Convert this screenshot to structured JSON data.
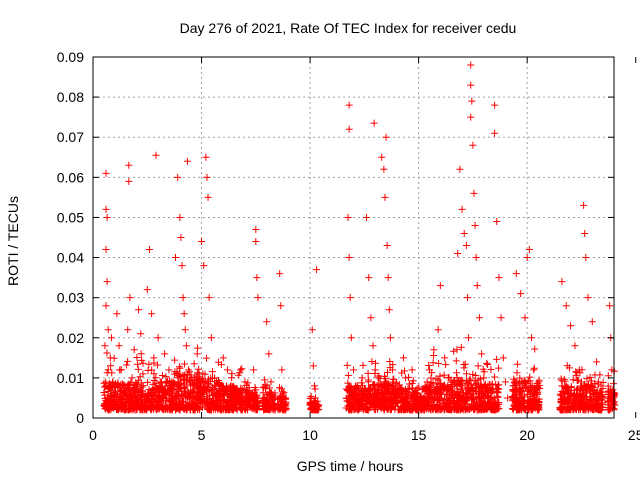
{
  "chart_data": {
    "type": "scatter",
    "title": "Day 276 of 2021, Rate Of TEC Index for receiver cedu",
    "xlabel": "GPS time / hours",
    "ylabel": "ROTI / TECUs",
    "xlim": [
      0,
      24
    ],
    "ylim": [
      0,
      0.09
    ],
    "x_ticks": [
      "0",
      "5",
      "10",
      "15",
      "20",
      "25"
    ],
    "y_ticks": [
      "0",
      "0.01",
      "0.02",
      "0.03",
      "0.04",
      "0.05",
      "0.06",
      "0.07",
      "0.08",
      "0.09"
    ],
    "grid": true,
    "marker": "+",
    "color": "#ff0000",
    "points": [
      [
        0.6,
        0.061
      ],
      [
        0.6,
        0.052
      ],
      [
        0.65,
        0.05
      ],
      [
        0.6,
        0.042
      ],
      [
        0.65,
        0.034
      ],
      [
        0.6,
        0.028
      ],
      [
        0.7,
        0.022
      ],
      [
        0.55,
        0.018
      ],
      [
        0.7,
        0.012
      ],
      [
        0.6,
        0.008
      ],
      [
        0.65,
        0.005
      ],
      [
        0.75,
        0.003
      ],
      [
        0.8,
        0.015
      ],
      [
        0.85,
        0.02
      ],
      [
        0.9,
        0.009
      ],
      [
        1.1,
        0.026
      ],
      [
        1.2,
        0.018
      ],
      [
        1.3,
        0.012
      ],
      [
        1.4,
        0.007
      ],
      [
        1.5,
        0.004
      ],
      [
        1.6,
        0.022
      ],
      [
        1.65,
        0.063
      ],
      [
        1.65,
        0.059
      ],
      [
        1.7,
        0.03
      ],
      [
        1.8,
        0.01
      ],
      [
        1.9,
        0.017
      ],
      [
        2.1,
        0.027
      ],
      [
        2.2,
        0.021
      ],
      [
        2.3,
        0.011
      ],
      [
        2.4,
        0.006
      ],
      [
        2.5,
        0.032
      ],
      [
        2.6,
        0.042
      ],
      [
        2.7,
        0.026
      ],
      [
        2.8,
        0.015
      ],
      [
        2.9,
        0.0655
      ],
      [
        3.0,
        0.02
      ],
      [
        3.1,
        0.009
      ],
      [
        3.2,
        0.005
      ],
      [
        3.3,
        0.016
      ],
      [
        3.5,
        0.012
      ],
      [
        3.6,
        0.008
      ],
      [
        3.8,
        0.04
      ],
      [
        3.9,
        0.06
      ],
      [
        4.0,
        0.05
      ],
      [
        4.05,
        0.045
      ],
      [
        4.1,
        0.038
      ],
      [
        4.15,
        0.03
      ],
      [
        4.2,
        0.026
      ],
      [
        4.25,
        0.022
      ],
      [
        4.3,
        0.018
      ],
      [
        4.35,
        0.064
      ],
      [
        4.4,
        0.012
      ],
      [
        4.5,
        0.008
      ],
      [
        4.6,
        0.005
      ],
      [
        4.7,
        0.003
      ],
      [
        4.8,
        0.016
      ],
      [
        5.0,
        0.044
      ],
      [
        5.1,
        0.038
      ],
      [
        5.2,
        0.065
      ],
      [
        5.25,
        0.06
      ],
      [
        5.3,
        0.055
      ],
      [
        5.35,
        0.03
      ],
      [
        5.45,
        0.02
      ],
      [
        5.6,
        0.01
      ],
      [
        5.8,
        0.006
      ],
      [
        6.0,
        0.015
      ],
      [
        6.2,
        0.012
      ],
      [
        6.4,
        0.008
      ],
      [
        6.6,
        0.005
      ],
      [
        6.8,
        0.012
      ],
      [
        7.0,
        0.009
      ],
      [
        7.2,
        0.004
      ],
      [
        7.5,
        0.047
      ],
      [
        7.5,
        0.044
      ],
      [
        7.55,
        0.035
      ],
      [
        7.6,
        0.03
      ],
      [
        7.4,
        0.012
      ],
      [
        7.5,
        0.007
      ],
      [
        7.6,
        0.004
      ],
      [
        8.0,
        0.024
      ],
      [
        8.1,
        0.016
      ],
      [
        8.2,
        0.009
      ],
      [
        8.3,
        0.005
      ],
      [
        8.6,
        0.036
      ],
      [
        8.65,
        0.028
      ],
      [
        8.7,
        0.012
      ],
      [
        8.75,
        0.006
      ],
      [
        8.8,
        0.003
      ],
      [
        10.1,
        0.022
      ],
      [
        10.15,
        0.013
      ],
      [
        10.2,
        0.008
      ],
      [
        10.25,
        0.005
      ],
      [
        10.3,
        0.037
      ],
      [
        11.8,
        0.078
      ],
      [
        11.8,
        0.072
      ],
      [
        11.75,
        0.05
      ],
      [
        11.8,
        0.04
      ],
      [
        11.85,
        0.03
      ],
      [
        11.9,
        0.02
      ],
      [
        12.0,
        0.012
      ],
      [
        12.1,
        0.007
      ],
      [
        12.2,
        0.004
      ],
      [
        12.4,
        0.01
      ],
      [
        12.6,
        0.05
      ],
      [
        12.7,
        0.035
      ],
      [
        12.8,
        0.025
      ],
      [
        12.9,
        0.018
      ],
      [
        12.95,
        0.0735
      ],
      [
        13.0,
        0.012
      ],
      [
        13.1,
        0.008
      ],
      [
        13.2,
        0.005
      ],
      [
        13.3,
        0.065
      ],
      [
        13.4,
        0.062
      ],
      [
        13.45,
        0.055
      ],
      [
        13.5,
        0.07
      ],
      [
        13.55,
        0.043
      ],
      [
        13.6,
        0.035
      ],
      [
        13.65,
        0.027
      ],
      [
        13.7,
        0.02
      ],
      [
        13.8,
        0.012
      ],
      [
        13.9,
        0.007
      ],
      [
        14.0,
        0.004
      ],
      [
        14.3,
        0.015
      ],
      [
        14.4,
        0.01
      ],
      [
        14.5,
        0.005
      ],
      [
        14.7,
        0.012
      ],
      [
        14.9,
        0.006
      ],
      [
        15.0,
        0.003
      ],
      [
        15.3,
        0.008
      ],
      [
        15.5,
        0.012
      ],
      [
        15.7,
        0.017
      ],
      [
        15.9,
        0.022
      ],
      [
        16.0,
        0.033
      ],
      [
        16.2,
        0.015
      ],
      [
        16.4,
        0.01
      ],
      [
        16.6,
        0.006
      ],
      [
        16.8,
        0.041
      ],
      [
        16.9,
        0.062
      ],
      [
        17.0,
        0.052
      ],
      [
        17.1,
        0.046
      ],
      [
        17.2,
        0.043
      ],
      [
        17.25,
        0.03
      ],
      [
        17.3,
        0.02
      ],
      [
        17.4,
        0.088
      ],
      [
        17.4,
        0.083
      ],
      [
        17.45,
        0.079
      ],
      [
        17.4,
        0.075
      ],
      [
        17.5,
        0.068
      ],
      [
        17.55,
        0.056
      ],
      [
        17.6,
        0.048
      ],
      [
        17.65,
        0.04
      ],
      [
        17.7,
        0.033
      ],
      [
        17.8,
        0.025
      ],
      [
        17.9,
        0.016
      ],
      [
        18.0,
        0.01
      ],
      [
        18.1,
        0.006
      ],
      [
        18.5,
        0.078
      ],
      [
        18.5,
        0.071
      ],
      [
        18.6,
        0.049
      ],
      [
        18.7,
        0.035
      ],
      [
        18.8,
        0.025
      ],
      [
        18.9,
        0.015
      ],
      [
        19.0,
        0.009
      ],
      [
        19.1,
        0.005
      ],
      [
        19.5,
        0.036
      ],
      [
        19.7,
        0.031
      ],
      [
        19.9,
        0.025
      ],
      [
        20.0,
        0.04
      ],
      [
        20.1,
        0.042
      ],
      [
        20.2,
        0.02
      ],
      [
        20.3,
        0.012
      ],
      [
        20.4,
        0.007
      ],
      [
        20.5,
        0.004
      ],
      [
        21.6,
        0.034
      ],
      [
        21.8,
        0.028
      ],
      [
        22.0,
        0.023
      ],
      [
        22.2,
        0.018
      ],
      [
        22.4,
        0.012
      ],
      [
        22.5,
        0.009
      ],
      [
        22.6,
        0.053
      ],
      [
        22.65,
        0.046
      ],
      [
        22.7,
        0.04
      ],
      [
        22.8,
        0.03
      ],
      [
        23.0,
        0.024
      ],
      [
        23.2,
        0.014
      ],
      [
        23.4,
        0.008
      ],
      [
        23.8,
        0.028
      ],
      [
        23.85,
        0.02
      ],
      [
        23.9,
        0.012
      ],
      [
        23.95,
        0.007
      ],
      [
        24.0,
        0.004
      ]
    ],
    "clusters": [
      [
        0.5,
        1.05,
        0.0095
      ],
      [
        1.05,
        1.9,
        0.0085
      ],
      [
        1.9,
        2.9,
        0.0085
      ],
      [
        2.9,
        3.75,
        0.009
      ],
      [
        3.75,
        4.9,
        0.011
      ],
      [
        4.9,
        5.9,
        0.0095
      ],
      [
        5.9,
        7.2,
        0.008
      ],
      [
        7.2,
        7.6,
        0.0065
      ],
      [
        7.8,
        8.4,
        0.0065
      ],
      [
        8.5,
        8.9,
        0.0055
      ],
      [
        10.0,
        10.4,
        0.0045
      ],
      [
        11.65,
        12.35,
        0.008
      ],
      [
        12.35,
        13.2,
        0.0085
      ],
      [
        13.2,
        14.2,
        0.009
      ],
      [
        14.2,
        14.8,
        0.0075
      ],
      [
        14.8,
        15.3,
        0.0055
      ],
      [
        15.3,
        16.6,
        0.009
      ],
      [
        16.6,
        17.6,
        0.0095
      ],
      [
        17.6,
        18.7,
        0.0085
      ],
      [
        19.3,
        20.6,
        0.0095
      ],
      [
        21.5,
        22.3,
        0.008
      ],
      [
        22.3,
        23.1,
        0.0085
      ],
      [
        23.1,
        23.5,
        0.0065
      ],
      [
        23.7,
        24.05,
        0.0065
      ]
    ]
  }
}
